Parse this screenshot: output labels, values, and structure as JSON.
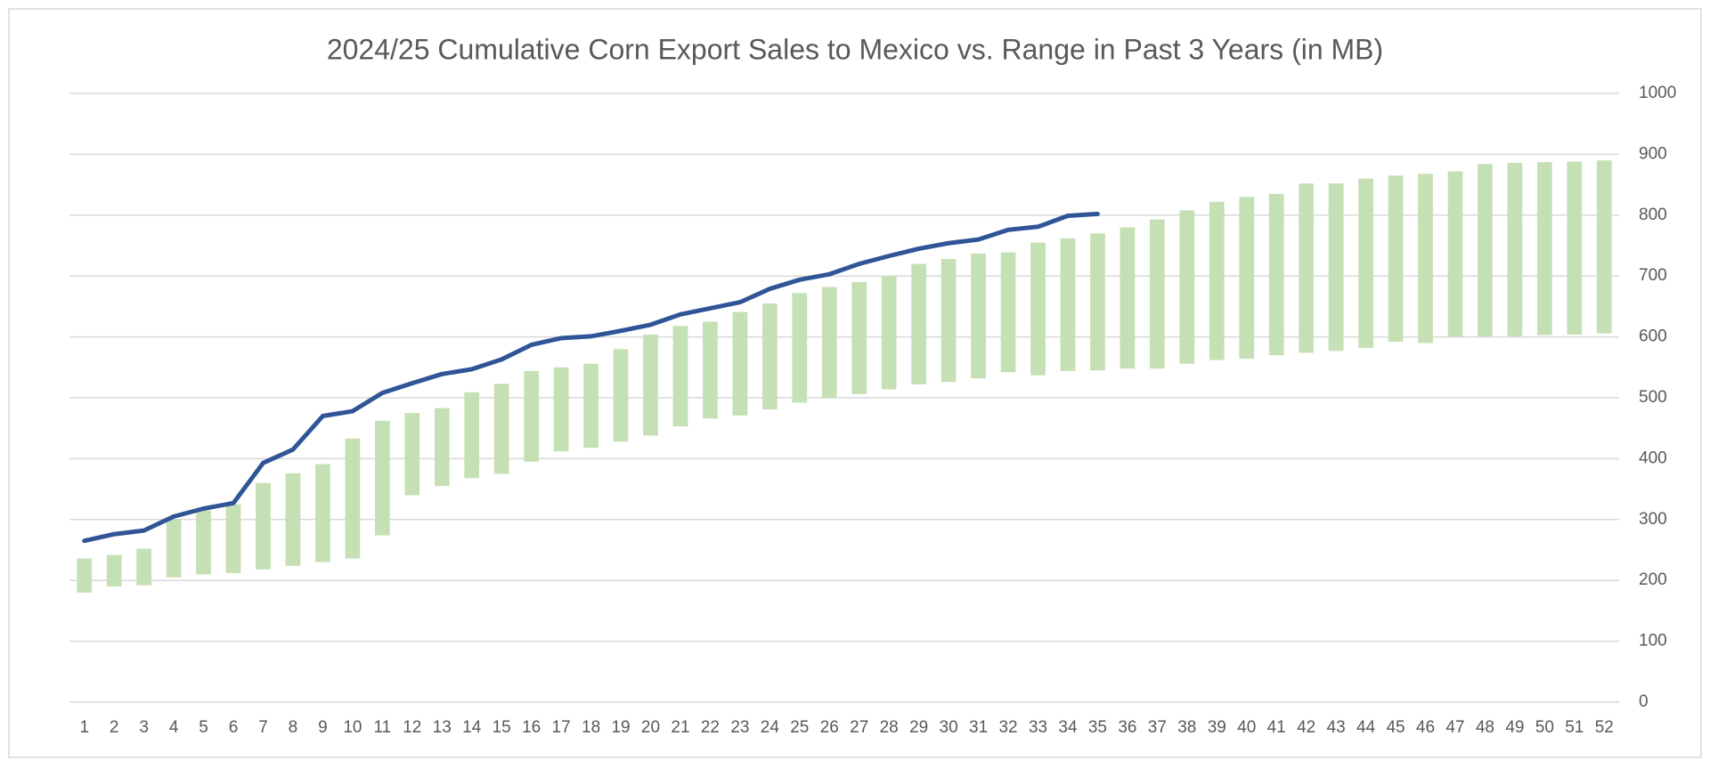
{
  "chart_data": {
    "type": "range-bar-line",
    "title": "2024/25 Cumulative Corn Export Sales to Mexico vs. Range in Past 3 Years (in MB)",
    "categories": [
      1,
      2,
      3,
      4,
      5,
      6,
      7,
      8,
      9,
      10,
      11,
      12,
      13,
      14,
      15,
      16,
      17,
      18,
      19,
      20,
      21,
      22,
      23,
      24,
      25,
      26,
      27,
      28,
      29,
      30,
      31,
      32,
      33,
      34,
      35,
      36,
      37,
      38,
      39,
      40,
      41,
      42,
      43,
      44,
      45,
      46,
      47,
      48,
      49,
      50,
      51,
      52
    ],
    "range": {
      "color": "#c5e0b4",
      "low": [
        180,
        190,
        192,
        205,
        210,
        212,
        218,
        224,
        230,
        236,
        274,
        340,
        355,
        368,
        375,
        395,
        412,
        418,
        428,
        438,
        453,
        466,
        471,
        481,
        492,
        500,
        506,
        514,
        522,
        526,
        532,
        542,
        537,
        544,
        545,
        548,
        548,
        556,
        562,
        564,
        570,
        574,
        577,
        582,
        592,
        590,
        600,
        601,
        601,
        603,
        604,
        606
      ],
      "high": [
        236,
        242,
        252,
        300,
        315,
        325,
        360,
        376,
        391,
        433,
        462,
        475,
        483,
        509,
        523,
        544,
        550,
        556,
        580,
        604,
        618,
        625,
        641,
        655,
        672,
        682,
        690,
        700,
        720,
        728,
        737,
        739,
        755,
        762,
        770,
        780,
        793,
        808,
        822,
        830,
        835,
        852,
        852,
        860,
        865,
        868,
        872,
        884,
        886,
        887,
        888,
        890
      ]
    },
    "line": {
      "color": "#2f5597",
      "values": [
        265,
        276,
        282,
        305,
        318,
        327,
        393,
        415,
        470,
        478,
        508,
        524,
        539,
        547,
        563,
        587,
        598,
        601,
        610,
        620,
        637,
        647,
        657,
        679,
        694,
        703,
        720,
        733,
        745,
        754,
        760,
        776,
        781,
        799,
        802,
        null,
        null,
        null,
        null,
        null,
        null,
        null,
        null,
        null,
        null,
        null,
        null,
        null,
        null,
        null,
        null,
        null
      ]
    },
    "ylim": [
      0,
      1000
    ],
    "yticks": [
      0,
      100,
      200,
      300,
      400,
      500,
      600,
      700,
      800,
      900,
      1000
    ],
    "y_axis_side": "right",
    "grid": true
  }
}
